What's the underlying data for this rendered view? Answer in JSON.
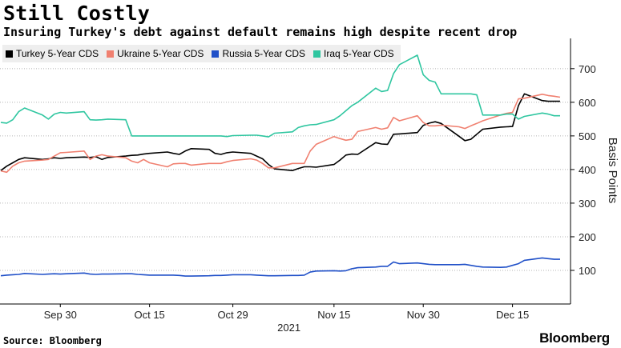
{
  "header": {
    "title": "Still Costly",
    "subtitle": "Insuring Turkey's debt against default remains high despite recent drop"
  },
  "footer": {
    "source": "Source: Bloomberg",
    "brand": "Bloomberg"
  },
  "chart_data": {
    "type": "line",
    "title": "Still Costly",
    "subtitle": "Insuring Turkey's debt against default remains high despite recent drop",
    "ylabel": "Basis Points",
    "xlabel": "2021",
    "ylim": [
      0,
      790
    ],
    "yticks": [
      100,
      200,
      300,
      400,
      500,
      600,
      700
    ],
    "x_tick_labels": [
      "Sep 30",
      "Oct 15",
      "Oct 29",
      "Nov 15",
      "Nov 30",
      "Dec 15"
    ],
    "x_tick_dates": [
      "2021-09-30",
      "2021-10-15",
      "2021-10-29",
      "2021-11-15",
      "2021-11-30",
      "2021-12-15"
    ],
    "x": [
      "2021-09-20",
      "2021-09-21",
      "2021-09-22",
      "2021-09-23",
      "2021-09-24",
      "2021-09-27",
      "2021-09-28",
      "2021-09-29",
      "2021-09-30",
      "2021-10-01",
      "2021-10-04",
      "2021-10-05",
      "2021-10-06",
      "2021-10-07",
      "2021-10-08",
      "2021-10-11",
      "2021-10-12",
      "2021-10-13",
      "2021-10-14",
      "2021-10-15",
      "2021-10-18",
      "2021-10-19",
      "2021-10-20",
      "2021-10-21",
      "2021-10-22",
      "2021-10-25",
      "2021-10-26",
      "2021-10-27",
      "2021-10-28",
      "2021-10-29",
      "2021-11-01",
      "2021-11-02",
      "2021-11-03",
      "2021-11-04",
      "2021-11-05",
      "2021-11-08",
      "2021-11-09",
      "2021-11-10",
      "2021-11-11",
      "2021-11-12",
      "2021-11-15",
      "2021-11-16",
      "2021-11-17",
      "2021-11-18",
      "2021-11-19",
      "2021-11-22",
      "2021-11-23",
      "2021-11-24",
      "2021-11-25",
      "2021-11-26",
      "2021-11-29",
      "2021-11-30",
      "2021-12-01",
      "2021-12-02",
      "2021-12-03",
      "2021-12-06",
      "2021-12-07",
      "2021-12-08",
      "2021-12-09",
      "2021-12-10",
      "2021-12-13",
      "2021-12-14",
      "2021-12-15",
      "2021-12-16",
      "2021-12-17",
      "2021-12-20",
      "2021-12-21",
      "2021-12-22",
      "2021-12-23"
    ],
    "series": [
      {
        "name": "Turkey 5-Year CDS",
        "color": "#000000",
        "values": [
          397,
          410,
          420,
          430,
          435,
          430,
          432,
          435,
          433,
          435,
          437,
          436,
          438,
          430,
          436,
          440,
          442,
          443,
          446,
          448,
          452,
          448,
          445,
          455,
          462,
          460,
          448,
          445,
          450,
          452,
          448,
          440,
          432,
          415,
          402,
          397,
          403,
          408,
          408,
          407,
          415,
          428,
          443,
          446,
          445,
          480,
          476,
          475,
          505,
          506,
          510,
          531,
          538,
          542,
          537,
          499,
          486,
          490,
          505,
          520,
          526,
          527,
          528,
          590,
          625,
          605,
          603,
          603,
          603
        ]
      },
      {
        "name": "Ukraine 5-Year CDS",
        "color": "#f08070",
        "values": [
          396,
          392,
          410,
          420,
          425,
          428,
          430,
          440,
          450,
          451,
          455,
          430,
          440,
          444,
          440,
          435,
          425,
          420,
          430,
          420,
          408,
          417,
          418,
          418,
          413,
          418,
          418,
          418,
          423,
          427,
          432,
          428,
          418,
          405,
          405,
          418,
          418,
          418,
          455,
          475,
          498,
          492,
          487,
          490,
          513,
          525,
          520,
          524,
          555,
          545,
          560,
          540,
          530,
          530,
          532,
          527,
          522,
          530,
          537,
          545,
          562,
          567,
          570,
          610,
          612,
          624,
          620,
          618,
          615
        ]
      },
      {
        "name": "Russia 5-Year CDS",
        "color": "#2050c8",
        "values": [
          84,
          86,
          87,
          88,
          91,
          88,
          89,
          90,
          89,
          90,
          92,
          89,
          88,
          89,
          89,
          90,
          90,
          88,
          87,
          86,
          86,
          86,
          85,
          83,
          83,
          84,
          85,
          85,
          86,
          87,
          87,
          86,
          85,
          84,
          84,
          85,
          85,
          86,
          95,
          98,
          99,
          98,
          99,
          105,
          108,
          110,
          112,
          112,
          125,
          120,
          122,
          120,
          118,
          117,
          117,
          117,
          118,
          115,
          112,
          110,
          109,
          110,
          115,
          120,
          130,
          137,
          135,
          133,
          133
        ]
      },
      {
        "name": "Iraq 5-Year CDS",
        "color": "#2fc6a0",
        "values": [
          540,
          538,
          548,
          572,
          583,
          562,
          550,
          565,
          570,
          568,
          572,
          548,
          547,
          548,
          550,
          548,
          500,
          500,
          500,
          500,
          500,
          500,
          500,
          500,
          500,
          500,
          500,
          500,
          498,
          501,
          502,
          502,
          500,
          497,
          508,
          512,
          525,
          530,
          533,
          534,
          548,
          560,
          575,
          590,
          600,
          642,
          632,
          635,
          685,
          712,
          740,
          682,
          665,
          660,
          625,
          625,
          625,
          625,
          622,
          562,
          562,
          565,
          565,
          550,
          558,
          568,
          565,
          560,
          560
        ]
      }
    ],
    "grid": true,
    "grid_style": "dotted horizontal",
    "legend_position": "top-left"
  }
}
